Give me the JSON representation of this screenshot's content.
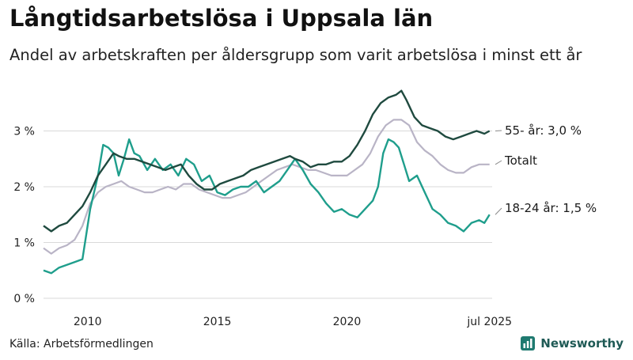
{
  "title": "Långtidsarbetslösa i Uppsala län",
  "subtitle": "Andel av arbetskraften per åldersgrupp som varit arbetslösa i minst ett år",
  "source": "Källa: Arbetsförmedlingen",
  "brand": "Newsworthy",
  "colors": {
    "55plus": "#1f4a3f",
    "totalt": "#b9b4c6",
    "youth": "#1f9e8c",
    "grid": "#d9d9d9",
    "axis_text": "#222222"
  },
  "chart_data": {
    "type": "line",
    "ylim": [
      0,
      4
    ],
    "yticks": [
      0,
      1,
      2,
      3
    ],
    "ytick_labels": [
      "0 %",
      "1 %",
      "2 %",
      "3 %"
    ],
    "xlim": [
      2008.3,
      2025.6
    ],
    "xticks": [
      2010,
      2015,
      2020,
      2025.5
    ],
    "xtick_labels": [
      "2010",
      "2015",
      "2020",
      "jul 2025"
    ],
    "series": [
      {
        "key": "55plus",
        "label": "55- år: 3,0 %",
        "color": "#1f4a3f",
        "x": [
          2008.3,
          2008.6,
          2008.9,
          2009.2,
          2009.5,
          2009.8,
          2010.1,
          2010.4,
          2010.7,
          2011.0,
          2011.2,
          2011.5,
          2011.8,
          2012.1,
          2012.4,
          2012.7,
          2013.0,
          2013.3,
          2013.6,
          2013.9,
          2014.2,
          2014.5,
          2014.8,
          2015.1,
          2015.4,
          2015.7,
          2016.0,
          2016.3,
          2016.6,
          2016.9,
          2017.2,
          2017.5,
          2017.8,
          2018.0,
          2018.3,
          2018.6,
          2018.9,
          2019.2,
          2019.5,
          2019.8,
          2020.1,
          2020.4,
          2020.7,
          2021.0,
          2021.3,
          2021.6,
          2021.9,
          2022.1,
          2022.3,
          2022.6,
          2022.9,
          2023.2,
          2023.5,
          2023.8,
          2024.1,
          2024.4,
          2024.7,
          2025.0,
          2025.3,
          2025.5
        ],
        "y": [
          1.3,
          1.2,
          1.3,
          1.35,
          1.5,
          1.65,
          1.9,
          2.2,
          2.4,
          2.6,
          2.55,
          2.5,
          2.5,
          2.45,
          2.4,
          2.35,
          2.3,
          2.35,
          2.4,
          2.2,
          2.05,
          1.95,
          1.95,
          2.05,
          2.1,
          2.15,
          2.2,
          2.3,
          2.35,
          2.4,
          2.45,
          2.5,
          2.55,
          2.5,
          2.45,
          2.35,
          2.4,
          2.4,
          2.45,
          2.45,
          2.55,
          2.75,
          3.0,
          3.3,
          3.5,
          3.6,
          3.65,
          3.72,
          3.55,
          3.25,
          3.1,
          3.05,
          3.0,
          2.9,
          2.85,
          2.9,
          2.95,
          3.0,
          2.95,
          3.0
        ]
      },
      {
        "key": "totalt",
        "label": "Totalt",
        "color": "#b9b4c6",
        "x": [
          2008.3,
          2008.6,
          2008.9,
          2009.2,
          2009.5,
          2009.8,
          2010.1,
          2010.4,
          2010.7,
          2011.0,
          2011.3,
          2011.6,
          2011.9,
          2012.2,
          2012.5,
          2012.8,
          2013.1,
          2013.4,
          2013.7,
          2014.0,
          2014.3,
          2014.6,
          2014.9,
          2015.2,
          2015.5,
          2015.8,
          2016.1,
          2016.4,
          2016.7,
          2017.0,
          2017.3,
          2017.6,
          2017.9,
          2018.2,
          2018.5,
          2018.8,
          2019.1,
          2019.4,
          2019.7,
          2020.0,
          2020.3,
          2020.6,
          2020.9,
          2021.2,
          2021.5,
          2021.8,
          2022.1,
          2022.4,
          2022.7,
          2023.0,
          2023.3,
          2023.6,
          2023.9,
          2024.2,
          2024.5,
          2024.8,
          2025.1,
          2025.5
        ],
        "y": [
          0.9,
          0.8,
          0.9,
          0.95,
          1.05,
          1.3,
          1.7,
          1.9,
          2.0,
          2.05,
          2.1,
          2.0,
          1.95,
          1.9,
          1.9,
          1.95,
          2.0,
          1.95,
          2.05,
          2.05,
          1.95,
          1.9,
          1.85,
          1.8,
          1.8,
          1.85,
          1.9,
          2.0,
          2.1,
          2.2,
          2.3,
          2.35,
          2.4,
          2.35,
          2.3,
          2.3,
          2.25,
          2.2,
          2.2,
          2.2,
          2.3,
          2.4,
          2.6,
          2.9,
          3.1,
          3.2,
          3.2,
          3.1,
          2.8,
          2.65,
          2.55,
          2.4,
          2.3,
          2.25,
          2.25,
          2.35,
          2.4,
          2.4
        ]
      },
      {
        "key": "youth",
        "label": "18-24 år: 1,5 %",
        "color": "#1f9e8c",
        "x": [
          2008.3,
          2008.6,
          2008.9,
          2009.2,
          2009.5,
          2009.8,
          2010.1,
          2010.4,
          2010.6,
          2010.8,
          2011.0,
          2011.2,
          2011.4,
          2011.6,
          2011.8,
          2012.0,
          2012.3,
          2012.6,
          2012.9,
          2013.2,
          2013.5,
          2013.8,
          2014.1,
          2014.4,
          2014.7,
          2015.0,
          2015.3,
          2015.6,
          2015.9,
          2016.2,
          2016.5,
          2016.8,
          2017.1,
          2017.4,
          2017.7,
          2018.0,
          2018.3,
          2018.6,
          2018.9,
          2019.2,
          2019.5,
          2019.8,
          2020.1,
          2020.4,
          2020.7,
          2021.0,
          2021.2,
          2021.4,
          2021.6,
          2021.8,
          2022.0,
          2022.2,
          2022.4,
          2022.7,
          2023.0,
          2023.3,
          2023.6,
          2023.9,
          2024.2,
          2024.5,
          2024.8,
          2025.1,
          2025.3,
          2025.5
        ],
        "y": [
          0.5,
          0.45,
          0.55,
          0.6,
          0.65,
          0.7,
          1.6,
          2.2,
          2.75,
          2.7,
          2.6,
          2.2,
          2.5,
          2.85,
          2.6,
          2.55,
          2.3,
          2.5,
          2.3,
          2.4,
          2.2,
          2.5,
          2.4,
          2.1,
          2.2,
          1.9,
          1.85,
          1.95,
          2.0,
          2.0,
          2.1,
          1.9,
          2.0,
          2.1,
          2.3,
          2.5,
          2.3,
          2.05,
          1.9,
          1.7,
          1.55,
          1.6,
          1.5,
          1.45,
          1.6,
          1.75,
          2.0,
          2.6,
          2.85,
          2.8,
          2.7,
          2.4,
          2.1,
          2.2,
          1.9,
          1.6,
          1.5,
          1.35,
          1.3,
          1.2,
          1.35,
          1.4,
          1.35,
          1.5
        ]
      }
    ]
  }
}
